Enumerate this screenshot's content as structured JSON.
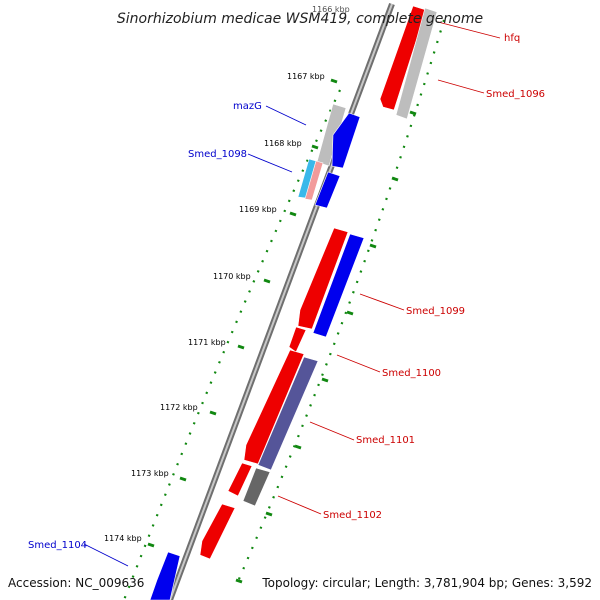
{
  "title": "Sinorhizobium medicae WSM419, complete genome",
  "footer": {
    "accession": "Accession: NC_009636",
    "topology": "Topology: circular; Length: 3,781,904 bp; Genes: 3,592"
  },
  "colors": {
    "forward_strand": "#ee0000",
    "reverse_strand": "#0000ee",
    "grey_gene": "#bdbdbd",
    "rna_gene": "#3ab8ea",
    "pink_gene": "#f29a9a",
    "purple_gene": "#555599",
    "dark_gene": "#666666",
    "tick_mark": "#118811",
    "label_red": "#cc0000",
    "label_blue": "#0000cc"
  },
  "kbp_ticks": [
    "1166 kbp",
    "1167 kbp",
    "1168 kbp",
    "1169 kbp",
    "1170 kbp",
    "1171 kbp",
    "1172 kbp",
    "1173 kbp",
    "1174 kbp"
  ],
  "gene_labels": [
    {
      "text": "hfq",
      "color": "red"
    },
    {
      "text": "Smed_1096",
      "color": "red"
    },
    {
      "text": "mazG",
      "color": "blue"
    },
    {
      "text": "Smed_1098",
      "color": "blue"
    },
    {
      "text": "Smed_1099",
      "color": "red"
    },
    {
      "text": "Smed_1100",
      "color": "red"
    },
    {
      "text": "Smed_1101",
      "color": "red"
    },
    {
      "text": "Smed_1102",
      "color": "red"
    },
    {
      "text": "Smed_1104",
      "color": "blue"
    }
  ]
}
